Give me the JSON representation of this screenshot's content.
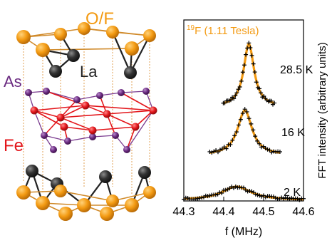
{
  "crystal": {
    "labels": {
      "of": "O/F",
      "la": "La",
      "as": "As",
      "fe": "Fe"
    },
    "colors": {
      "of": "#f39a12",
      "la": "#2f2f2f",
      "as": "#6a2a80",
      "fe": "#e3161b"
    }
  },
  "chart_data": {
    "type": "line",
    "title_prefix": "19",
    "title_rest": "F (1.11 Tesla)",
    "xlabel": "f (MHz)",
    "ylabel": "FFT intensity (arbitrary units)",
    "xlim": [
      44.3,
      44.6
    ],
    "xticks": [
      44.3,
      44.4,
      44.5,
      44.6
    ],
    "xtick_labels": [
      "44.3",
      "44.4",
      "44.5",
      "44.6"
    ],
    "fit_color": "#f39a12",
    "marker_color": "#000000",
    "series": [
      {
        "name": "28.5 K",
        "center": 44.463,
        "width": 0.016,
        "amplitude": 1.0
      },
      {
        "name": "16 K",
        "center": 44.453,
        "width": 0.022,
        "amplitude": 0.82
      },
      {
        "name": "2 K",
        "center": 44.432,
        "width": 0.045,
        "amplitude": 0.22
      }
    ]
  }
}
